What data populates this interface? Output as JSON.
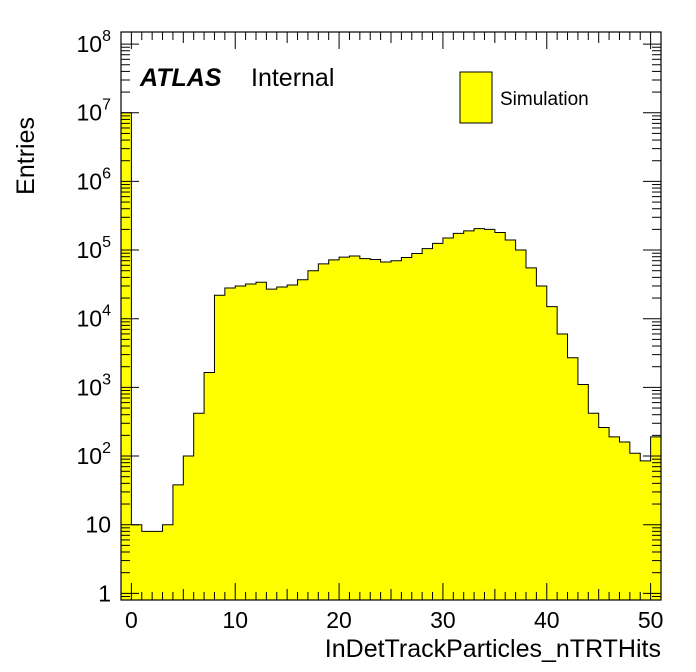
{
  "chart_data": {
    "type": "bar",
    "xlabel": "InDetTrackParticles_nTRTHits",
    "ylabel": "Entries",
    "xlim": [
      -1,
      51
    ],
    "ylim": [
      0.8,
      150000000
    ],
    "log_y": true,
    "bin_width": 1,
    "x_ticks": [
      {
        "value": 0,
        "label": "0"
      },
      {
        "value": 10,
        "label": "10"
      },
      {
        "value": 20,
        "label": "20"
      },
      {
        "value": 30,
        "label": "30"
      },
      {
        "value": 40,
        "label": "40"
      },
      {
        "value": 50,
        "label": "50"
      }
    ],
    "y_ticks": [
      {
        "value": 1,
        "base": "1",
        "exp": ""
      },
      {
        "value": 10,
        "base": "10",
        "exp": ""
      },
      {
        "value": 100,
        "base": "10",
        "exp": "2"
      },
      {
        "value": 1000,
        "base": "10",
        "exp": "3"
      },
      {
        "value": 10000,
        "base": "10",
        "exp": "4"
      },
      {
        "value": 100000,
        "base": "10",
        "exp": "5"
      },
      {
        "value": 1000000,
        "base": "10",
        "exp": "6"
      },
      {
        "value": 10000000,
        "base": "10",
        "exp": "7"
      },
      {
        "value": 100000000,
        "base": "10",
        "exp": "8"
      }
    ],
    "bin_low_edges": [
      -1,
      0,
      1,
      2,
      3,
      4,
      5,
      6,
      7,
      8,
      9,
      10,
      11,
      12,
      13,
      14,
      15,
      16,
      17,
      18,
      19,
      20,
      21,
      22,
      23,
      24,
      25,
      26,
      27,
      28,
      29,
      30,
      31,
      32,
      33,
      34,
      35,
      36,
      37,
      38,
      39,
      40,
      41,
      42,
      43,
      44,
      45,
      46,
      47,
      48,
      49,
      50
    ],
    "series": [
      {
        "name": "Simulation",
        "color": "#ffff00",
        "line_color": "#000000",
        "values": [
          10000000,
          10,
          8,
          8,
          10,
          38,
          100,
          420,
          1650,
          22000,
          28000,
          30000,
          32000,
          34000,
          27000,
          29000,
          31000,
          37000,
          50000,
          63000,
          72000,
          79000,
          82000,
          75000,
          73000,
          67000,
          70000,
          78000,
          89000,
          105000,
          125000,
          150000,
          175000,
          190000,
          205000,
          200000,
          180000,
          140000,
          100000,
          55000,
          30000,
          15000,
          6000,
          2700,
          1100,
          420,
          260,
          190,
          160,
          110,
          85,
          190
        ]
      }
    ],
    "legend": {
      "position": "top-right",
      "entries": [
        "Simulation"
      ]
    },
    "annotation": {
      "atlas": "ATLAS",
      "internal": "Internal"
    },
    "grid": false
  }
}
